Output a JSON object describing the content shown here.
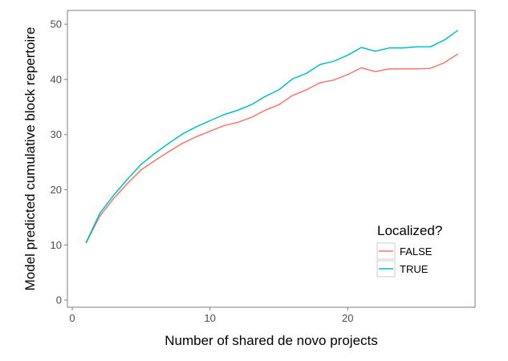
{
  "chart_data": {
    "type": "line",
    "title": "",
    "xlabel": "Number of shared de novo projects",
    "ylabel": "Model predicted cumulative block repertoire",
    "xlim": [
      -0.35,
      29.25
    ],
    "ylim": [
      -1.3,
      52.5
    ],
    "x_ticks": [
      0,
      10,
      20
    ],
    "y_ticks": [
      0,
      10,
      20,
      30,
      40,
      50
    ],
    "grid": false,
    "legend": {
      "title": "Localized?",
      "placement": "bottom-right"
    },
    "x": [
      1,
      2,
      3,
      4,
      5,
      6,
      7,
      8,
      9,
      10,
      11,
      12,
      13,
      14,
      15,
      16,
      17,
      18,
      19,
      20,
      21,
      22,
      23,
      24,
      25,
      26,
      27,
      28
    ],
    "series": [
      {
        "name": "FALSE",
        "color": "#f8766d",
        "values": [
          10.3,
          15.2,
          18.4,
          21.1,
          23.6,
          25.3,
          26.9,
          28.4,
          29.6,
          30.6,
          31.6,
          32.2,
          33.1,
          34.4,
          35.4,
          37.1,
          38.1,
          39.4,
          39.9,
          40.9,
          42.1,
          41.4,
          41.9,
          41.9,
          41.9,
          42.0,
          43.0,
          44.6
        ]
      },
      {
        "name": "TRUE",
        "color": "#00bfc4",
        "values": [
          10.4,
          15.7,
          19.0,
          21.9,
          24.6,
          26.6,
          28.4,
          30.1,
          31.4,
          32.5,
          33.6,
          34.4,
          35.4,
          36.9,
          38.1,
          40.1,
          41.1,
          42.7,
          43.3,
          44.4,
          45.8,
          45.1,
          45.7,
          45.7,
          45.9,
          45.9,
          47.1,
          48.9
        ]
      }
    ]
  }
}
